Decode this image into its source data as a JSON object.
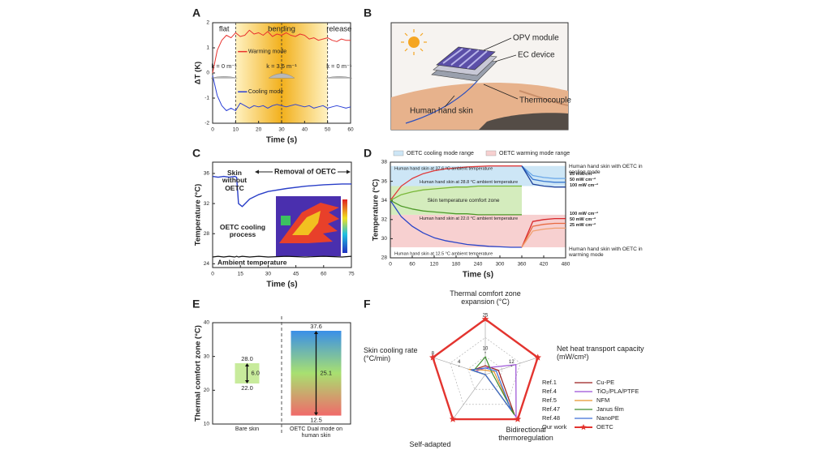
{
  "chart_data": [
    {
      "panel_label": "A",
      "type": "line",
      "xlabel": "Time (s)",
      "ylabel": "ΔT (K)",
      "xlim": [
        0,
        60
      ],
      "ylim": [
        -2,
        2
      ],
      "xticks": [
        0,
        10,
        20,
        30,
        40,
        50,
        60
      ],
      "yticks": [
        -2,
        -1,
        0,
        1,
        2
      ],
      "phases": [
        {
          "label": "flat",
          "from": 0,
          "to": 10
        },
        {
          "label": "bending",
          "from": 10,
          "to": 50
        },
        {
          "label": "release",
          "from": 50,
          "to": 60
        }
      ],
      "dashed_lines": [
        10,
        30,
        50
      ],
      "curvatures": [
        "k = 0 m⁻¹",
        "k = 3.6 m⁻¹",
        "k = 0 m⁻¹"
      ],
      "x": [
        0,
        2,
        4,
        6,
        8,
        10,
        12,
        14,
        16,
        18,
        20,
        22,
        24,
        26,
        28,
        30,
        32,
        34,
        36,
        38,
        40,
        42,
        44,
        46,
        48,
        50,
        52,
        54,
        56,
        58,
        60
      ],
      "series": [
        {
          "name": "Warming mode",
          "color": "#e8322e",
          "values": [
            0,
            0.9,
            1.3,
            1.5,
            1.4,
            1.6,
            1.45,
            1.5,
            1.7,
            1.55,
            1.6,
            1.5,
            1.65,
            1.45,
            1.55,
            1.5,
            1.6,
            1.5,
            1.45,
            1.55,
            1.5,
            1.35,
            1.4,
            1.3,
            1.35,
            1.4,
            1.3,
            1.25,
            1.35,
            1.3,
            1.3
          ]
        },
        {
          "name": "Cooling mode",
          "color": "#2a3fd6",
          "values": [
            -0.1,
            -0.9,
            -1.3,
            -1.5,
            -1.4,
            -1.5,
            -1.2,
            -1.3,
            -1.4,
            -1.3,
            -1.35,
            -1.3,
            -1.4,
            -1.3,
            -1.25,
            -1.3,
            -1.35,
            -1.3,
            -1.25,
            -1.3,
            -1.35,
            -1.3,
            -1.4,
            -1.35,
            -1.3,
            -1.4,
            -1.35,
            -1.3,
            -1.35,
            -1.4,
            -1.35
          ]
        }
      ]
    },
    {
      "panel_label": "C",
      "type": "line",
      "xlabel": "Time (s)",
      "ylabel": "Temperature (°C)",
      "xlim": [
        0,
        75
      ],
      "ylim": [
        23.5,
        37.5
      ],
      "xticks": [
        0,
        15,
        30,
        45,
        60,
        75
      ],
      "yticks": [
        24,
        28,
        32,
        36
      ],
      "annotations": [
        "Skin without OETC",
        "Removal of OETC",
        "OETC cooling process"
      ],
      "x": [
        0,
        3,
        6,
        9,
        12,
        13,
        14,
        16,
        20,
        25,
        30,
        40,
        50,
        60,
        70,
        75
      ],
      "series": [
        {
          "color": "#2a3fc8",
          "values": [
            35.6,
            35.5,
            35.6,
            35.5,
            35.6,
            35.5,
            32,
            31.6,
            32.6,
            33.2,
            33.6,
            34,
            34.3,
            34.5,
            34.6,
            34.6
          ]
        },
        {
          "name": "Ambient temperature",
          "color": "#111111",
          "values": [
            24.9,
            25,
            24.9,
            25,
            24.9,
            25,
            24.9,
            25,
            24.9,
            25,
            24.9,
            25,
            24.9,
            25,
            24.9,
            25
          ]
        }
      ]
    },
    {
      "panel_label": "D",
      "type": "line",
      "xlabel": "Time (s)",
      "ylabel": "Temperature (°C)",
      "xlim": [
        0,
        480
      ],
      "ylim": [
        28,
        38
      ],
      "xticks": [
        0,
        60,
        120,
        180,
        240,
        300,
        360,
        420,
        480
      ],
      "yticks": [
        28,
        30,
        32,
        34,
        36,
        38
      ],
      "ranges": [
        {
          "name": "OETC cooling mode range",
          "color": "#cde6f6",
          "from": 35.5,
          "to": 37.6
        },
        {
          "name": "OETC warming mode range",
          "color": "#f7d0d0",
          "from": 29.1,
          "to": 32.5
        }
      ],
      "comfort_zone": {
        "label": "Skin temperature comfort zone",
        "color": "#d4ecbd",
        "from": 32.5,
        "to": 35.5
      },
      "annotations": [
        "Human hand skin with OETC in cooling mode",
        "Human hand skin with OETC in warming mode"
      ],
      "x": [
        0,
        30,
        60,
        90,
        120,
        150,
        180,
        210,
        240,
        270,
        300,
        330,
        360,
        390,
        420,
        450,
        480
      ],
      "series": [
        {
          "name": "Human hand skin at 37.6 °C ambient temperature",
          "color": "#e03a3a",
          "values": [
            34,
            35.5,
            36.3,
            36.8,
            37.1,
            37.3,
            37.4,
            37.5,
            37.55,
            37.6,
            37.6,
            37.6,
            37.6,
            null,
            null,
            null,
            null
          ]
        },
        {
          "name": "25 mW cm⁻²",
          "color": "#6aa7e8",
          "values": [
            null,
            null,
            null,
            null,
            null,
            null,
            null,
            null,
            null,
            null,
            null,
            null,
            37.6,
            36.6,
            36.4,
            36.3,
            36.3
          ]
        },
        {
          "name": "50 mW cm⁻²",
          "color": "#3a78d0",
          "values": [
            null,
            null,
            null,
            null,
            null,
            null,
            null,
            null,
            null,
            null,
            null,
            null,
            37.6,
            36.2,
            36,
            35.9,
            35.9
          ]
        },
        {
          "name": "100 mW cm⁻²",
          "color": "#1a3f9a",
          "values": [
            null,
            null,
            null,
            null,
            null,
            null,
            null,
            null,
            null,
            null,
            null,
            null,
            37.6,
            35.7,
            35.5,
            35.4,
            35.4
          ]
        },
        {
          "name": "Human hand skin at 12.5 °C ambient temperature",
          "color": "#2a45c8",
          "values": [
            34,
            32.3,
            31.3,
            30.6,
            30.1,
            29.8,
            29.6,
            29.4,
            29.3,
            29.2,
            29.15,
            29.1,
            29.1,
            null,
            null,
            null,
            null
          ]
        },
        {
          "name": "100 mW cm⁻²",
          "color": "#d8262a",
          "values": [
            null,
            null,
            null,
            null,
            null,
            null,
            null,
            null,
            null,
            null,
            null,
            null,
            29.1,
            31.8,
            32,
            32.1,
            32.1
          ]
        },
        {
          "name": "50 mW cm⁻²",
          "color": "#e86a40",
          "values": [
            null,
            null,
            null,
            null,
            null,
            null,
            null,
            null,
            null,
            null,
            null,
            null,
            29.1,
            31.3,
            31.5,
            31.6,
            31.6
          ]
        },
        {
          "name": "25 mW cm⁻²",
          "color": "#f0a070",
          "values": [
            null,
            null,
            null,
            null,
            null,
            null,
            null,
            null,
            null,
            null,
            null,
            null,
            29.1,
            30.8,
            31,
            31.1,
            31.1
          ]
        },
        {
          "name": "Human hand skin at 28.8 °C ambient temperature",
          "color": "#7ab83a",
          "values": [
            34,
            34.6,
            34.9,
            35.1,
            35.2,
            35.3,
            35.4,
            35.4,
            35.5,
            35.5,
            35.5,
            35.5,
            35.5,
            null,
            null,
            null,
            null
          ]
        },
        {
          "name": "Human hand skin at 22.0 °C ambient temperature",
          "color": "#4f9a2a",
          "values": [
            34,
            33.4,
            33.1,
            32.9,
            32.8,
            32.7,
            32.6,
            32.6,
            32.5,
            32.5,
            32.5,
            32.5,
            32.5,
            null,
            null,
            null,
            null
          ]
        }
      ]
    },
    {
      "panel_label": "E",
      "type": "range_bar",
      "ylabel": "Thermal comfort zone (°C)",
      "ylim": [
        10,
        40
      ],
      "yticks": [
        10,
        20,
        30,
        40
      ],
      "categories": [
        "Bare skin",
        "OETC Dual mode on human skin"
      ],
      "lows": {
        "values": [
          22,
          12.5
        ],
        "value_labels": [
          "22.0",
          "12.5"
        ]
      },
      "highs": {
        "values": [
          28,
          37.6
        ],
        "value_labels": [
          "28.0",
          "37.6"
        ]
      },
      "spans": {
        "values": [
          6,
          25.1
        ],
        "value_labels": [
          "6.0",
          "25.1"
        ]
      }
    },
    {
      "panel_label": "F",
      "type": "radar",
      "axes": [
        {
          "label": "Thermal comfort zone expansion (°C)",
          "max": 25,
          "ticks": [
            10,
            25
          ]
        },
        {
          "label": "Net heat transport capacity (mW/cm²)",
          "max": 24,
          "ticks": [
            12
          ]
        },
        {
          "label": "Bidirectional thermoregulation",
          "max": 1
        },
        {
          "label": "Self-adapted",
          "max": 1
        },
        {
          "label": "Skin cooling rate (°C/min)",
          "max": 8,
          "ticks": [
            4,
            8
          ]
        }
      ],
      "series": [
        {
          "ref": "Ref.1",
          "name": "Cu-PE",
          "color": "#9b1c1c",
          "values": [
            4,
            6,
            0.9,
            0,
            2
          ]
        },
        {
          "ref": "Ref.4",
          "name": "TiO₂/PLA/PTFE",
          "color": "#9a4fd6",
          "values": [
            3,
            14,
            0.95,
            0,
            1.5
          ]
        },
        {
          "ref": "Ref.5",
          "name": "NFM",
          "color": "#e8942c",
          "values": [
            2,
            4,
            0.85,
            0,
            2.5
          ]
        },
        {
          "ref": "Ref.47",
          "name": "Janus film",
          "color": "#3e8e2e",
          "values": [
            8,
            3,
            0.9,
            0,
            1.8
          ]
        },
        {
          "ref": "Ref.48",
          "name": "NanoPE",
          "color": "#3f6fd8",
          "values": [
            3,
            5,
            0.8,
            0,
            2.2
          ]
        },
        {
          "ref": "Our work",
          "name": "OETC",
          "color": "#e3342f",
          "marker": "star",
          "values": [
            25.1,
            24,
            1,
            1,
            8
          ]
        }
      ]
    }
  ],
  "diagram": {
    "panel_label": "B",
    "labels": [
      "OPV module",
      "EC device",
      "Thermocouple",
      "Human hand skin"
    ]
  }
}
